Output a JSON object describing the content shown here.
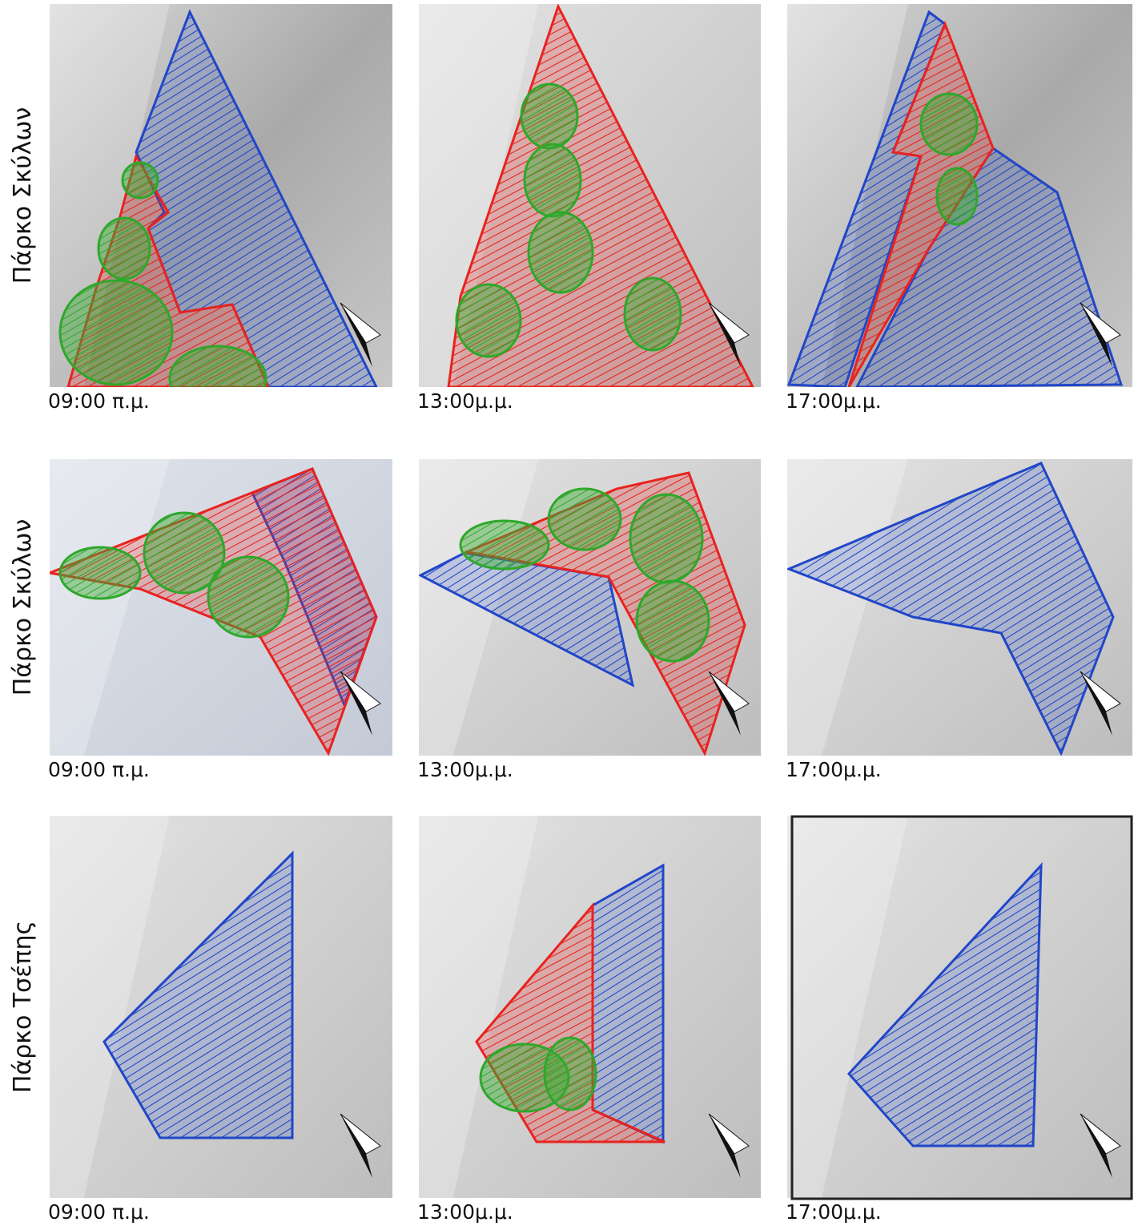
{
  "rows": [
    {
      "label": "Πάρκο Σκύλων",
      "panels": [
        {
          "caption": "09:00 π.μ."
        },
        {
          "caption": "13:00μ.μ."
        },
        {
          "caption": "17:00μ.μ."
        }
      ]
    },
    {
      "label": "Πάρκο Σκύλων",
      "panels": [
        {
          "caption": "09:00 π.μ."
        },
        {
          "caption": "13:00μ.μ."
        },
        {
          "caption": "17:00μ.μ."
        }
      ]
    },
    {
      "label": "Πάρκο Τσέπης",
      "panels": [
        {
          "caption": "09:00 π.μ."
        },
        {
          "caption": "13:00μ.μ."
        },
        {
          "caption": "17:00μ.μ."
        }
      ]
    }
  ]
}
